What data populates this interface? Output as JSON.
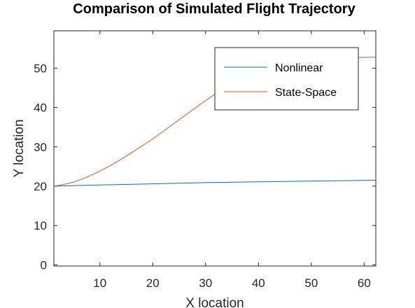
{
  "chart_data": {
    "type": "line",
    "title": "Comparison of Simulated Flight Trajectory",
    "xlabel": "X location",
    "ylabel": "Y location",
    "xlim": [
      1.3,
      62.2
    ],
    "ylim": [
      -0.3,
      59.5
    ],
    "xticks": [
      10,
      20,
      30,
      40,
      50,
      60
    ],
    "yticks": [
      0,
      10,
      20,
      30,
      40,
      50
    ],
    "grid": false,
    "legend": "top-right",
    "series": [
      {
        "name": "Nonlinear",
        "color": "#0072BD",
        "x": [
          1.3,
          10,
          20,
          30,
          40,
          50,
          62.2
        ],
        "y": [
          20.0,
          20.3,
          20.6,
          20.9,
          21.1,
          21.3,
          21.5
        ]
      },
      {
        "name": "State-Space",
        "color": "#D95319",
        "x": [
          1.3,
          3,
          5,
          7,
          10,
          13,
          16,
          20,
          25,
          30,
          35,
          40,
          45,
          50,
          55,
          62.2
        ],
        "y": [
          20.0,
          20.4,
          21.0,
          22.0,
          23.8,
          26.0,
          28.5,
          32.0,
          36.9,
          41.8,
          46.2,
          49.6,
          51.6,
          52.4,
          52.6,
          52.8
        ]
      }
    ]
  }
}
